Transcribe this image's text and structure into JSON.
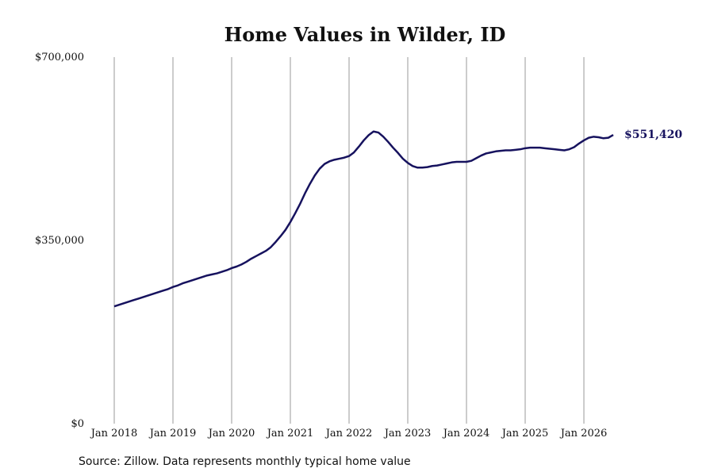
{
  "chart_data": {
    "type": "line",
    "title": "Home Values in Wilder, ID",
    "source": "Source: Zillow. Data represents monthly typical home value",
    "x": [
      "2018-01",
      "2018-02",
      "2018-03",
      "2018-04",
      "2018-05",
      "2018-06",
      "2018-07",
      "2018-08",
      "2018-09",
      "2018-10",
      "2018-11",
      "2018-12",
      "2019-01",
      "2019-02",
      "2019-03",
      "2019-04",
      "2019-05",
      "2019-06",
      "2019-07",
      "2019-08",
      "2019-09",
      "2019-10",
      "2019-11",
      "2019-12",
      "2020-01",
      "2020-02",
      "2020-03",
      "2020-04",
      "2020-05",
      "2020-06",
      "2020-07",
      "2020-08",
      "2020-09",
      "2020-10",
      "2020-11",
      "2020-12",
      "2021-01",
      "2021-02",
      "2021-03",
      "2021-04",
      "2021-05",
      "2021-06",
      "2021-07",
      "2021-08",
      "2021-09",
      "2021-10",
      "2021-11",
      "2021-12",
      "2022-01",
      "2022-02",
      "2022-03",
      "2022-04",
      "2022-05",
      "2022-06",
      "2022-07",
      "2022-08",
      "2022-09",
      "2022-10",
      "2022-11",
      "2022-12",
      "2023-01",
      "2023-02",
      "2023-03",
      "2023-04",
      "2023-05",
      "2023-06",
      "2023-07",
      "2023-08",
      "2023-09",
      "2023-10",
      "2023-11",
      "2023-12",
      "2024-01",
      "2024-02",
      "2024-03",
      "2024-04",
      "2024-05",
      "2024-06",
      "2024-07",
      "2024-08",
      "2024-09",
      "2024-10",
      "2024-11",
      "2024-12",
      "2025-01",
      "2025-02",
      "2025-03",
      "2025-04",
      "2025-05",
      "2025-06",
      "2025-07",
      "2025-08",
      "2025-09",
      "2025-10",
      "2025-11",
      "2025-12",
      "2026-01",
      "2026-02",
      "2026-03",
      "2026-04",
      "2026-05",
      "2026-06",
      "2026-07"
    ],
    "values": [
      224000,
      227000,
      230000,
      233000,
      236000,
      239000,
      242000,
      245000,
      248000,
      251000,
      254000,
      257000,
      261000,
      264000,
      268000,
      271000,
      274000,
      277000,
      280000,
      283000,
      285000,
      287000,
      290000,
      293000,
      297000,
      300000,
      304000,
      309000,
      315000,
      320000,
      325000,
      330000,
      337000,
      347000,
      358000,
      370000,
      385000,
      402000,
      420000,
      440000,
      458000,
      474000,
      487000,
      496000,
      501000,
      504000,
      506000,
      508000,
      511000,
      518000,
      529000,
      541000,
      551000,
      558000,
      556000,
      548000,
      538000,
      527000,
      517000,
      506000,
      498000,
      492000,
      489000,
      489000,
      490000,
      492000,
      493000,
      495000,
      497000,
      499000,
      500000,
      500000,
      500000,
      502000,
      507000,
      512000,
      516000,
      518000,
      520000,
      521000,
      522000,
      522000,
      523000,
      524000,
      526000,
      527000,
      527000,
      527000,
      526000,
      525000,
      524000,
      523000,
      522000,
      524000,
      528000,
      535000,
      541000,
      546000,
      548000,
      547000,
      545000,
      546000,
      551420
    ],
    "value_labels": [
      null,
      null,
      null,
      null,
      null,
      null,
      null,
      null,
      null,
      null,
      null,
      null,
      null,
      null,
      null,
      null,
      null,
      null,
      null,
      null,
      null,
      null,
      null,
      null,
      null,
      null,
      null,
      null,
      null,
      null,
      null,
      null,
      null,
      null,
      null,
      null,
      null,
      null,
      null,
      null,
      null,
      null,
      null,
      null,
      null,
      null,
      null,
      null,
      null,
      null,
      null,
      null,
      null,
      null,
      null,
      null,
      null,
      null,
      null,
      null,
      null,
      null,
      null,
      null,
      null,
      null,
      null,
      null,
      null,
      null,
      null,
      null,
      null,
      null,
      null,
      null,
      null,
      null,
      null,
      null,
      null,
      null,
      null,
      null,
      null,
      null,
      null,
      null,
      null,
      null,
      null,
      null,
      null,
      null,
      null,
      null,
      null,
      null,
      null,
      null,
      null,
      null,
      "$551,420"
    ],
    "color": "#16125e",
    "ylim": [
      0,
      700000
    ],
    "yticks": [
      {
        "value": 0,
        "label": "$0"
      },
      {
        "value": 350000,
        "label": "$350,000"
      },
      {
        "value": 700000,
        "label": "$700,000"
      }
    ],
    "xticks": [
      {
        "value": "2018-01",
        "label": "Jan 2018"
      },
      {
        "value": "2019-01",
        "label": "Jan 2019"
      },
      {
        "value": "2020-01",
        "label": "Jan 2020"
      },
      {
        "value": "2021-01",
        "label": "Jan 2021"
      },
      {
        "value": "2022-01",
        "label": "Jan 2022"
      },
      {
        "value": "2023-01",
        "label": "Jan 2023"
      },
      {
        "value": "2024-01",
        "label": "Jan 2024"
      },
      {
        "value": "2025-01",
        "label": "Jan 2025"
      },
      {
        "value": "2026-01",
        "label": "Jan 2026"
      }
    ],
    "grid": "x"
  }
}
